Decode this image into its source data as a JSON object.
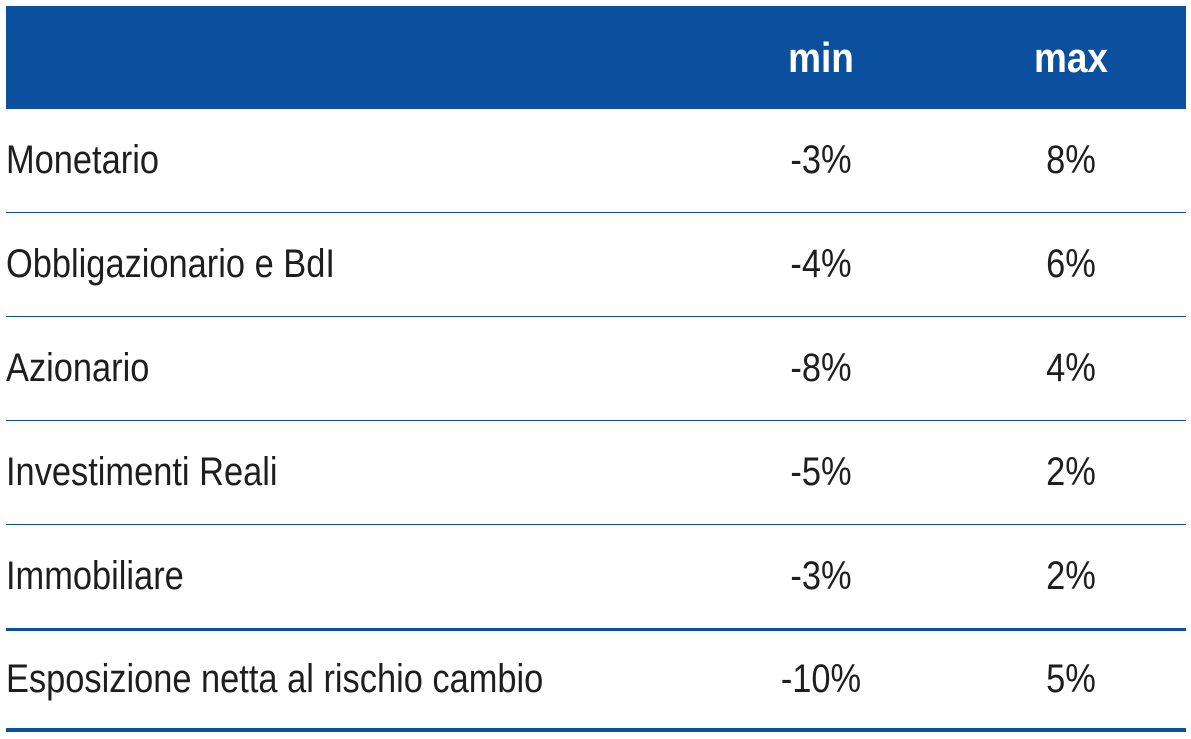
{
  "table": {
    "headers": {
      "category": "",
      "min": "min",
      "max": "max"
    },
    "rows": [
      {
        "label": "Monetario",
        "min": "-3%",
        "max": "8%"
      },
      {
        "label": "Obbligazionario e BdI",
        "min": "-4%",
        "max": "6%"
      },
      {
        "label": "Azionario",
        "min": "-8%",
        "max": "4%"
      },
      {
        "label": "Investimenti Reali",
        "min": "-5%",
        "max": "2%"
      },
      {
        "label": "Immobiliare",
        "min": "-3%",
        "max": "2%"
      },
      {
        "label": "Esposizione netta al rischio cambio",
        "min": "-10%",
        "max": "5%"
      }
    ]
  },
  "colors": {
    "header_bg": "#0b4f9f",
    "rule": "#0b4f9f",
    "text": "#1e1e1e"
  }
}
